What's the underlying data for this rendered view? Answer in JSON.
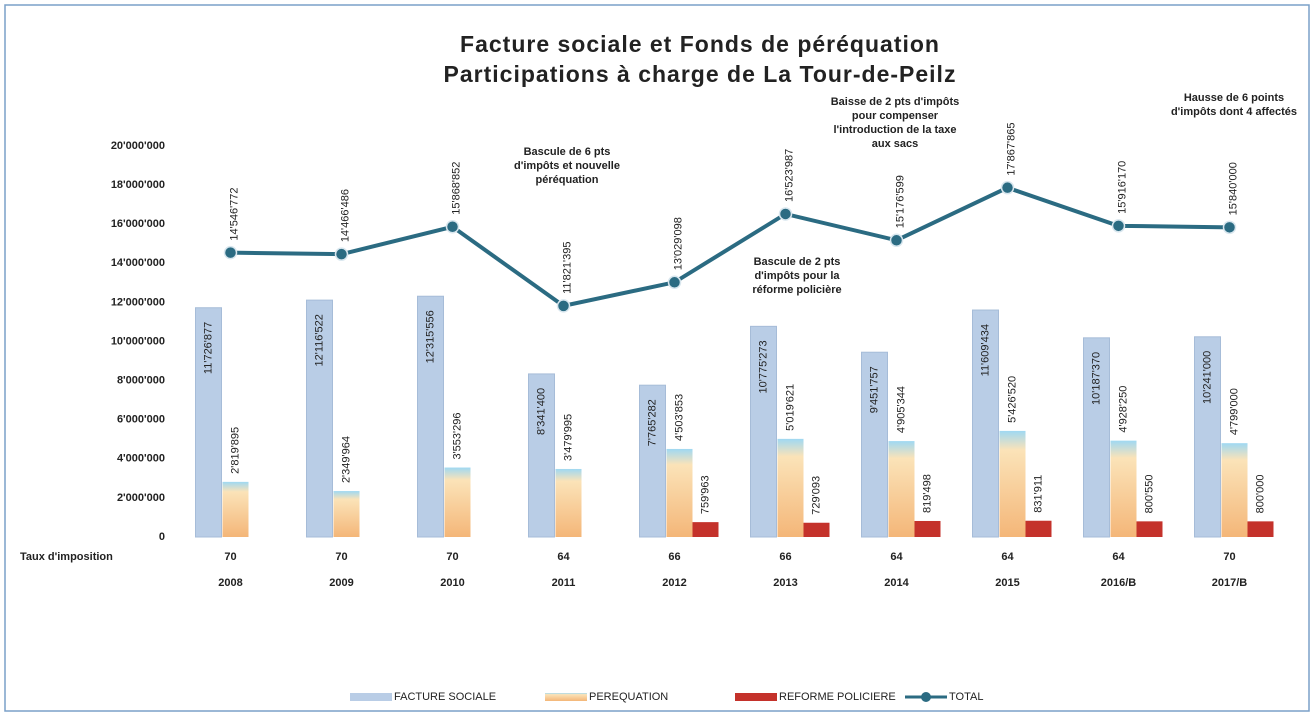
{
  "chart_data": {
    "type": "bar_line",
    "title": [
      "Facture sociale et Fonds de péréquation",
      "Participations à charge de La Tour-de-Peilz"
    ],
    "categories": [
      "2008",
      "2009",
      "2010",
      "2011",
      "2012",
      "2013",
      "2014",
      "2015",
      "2016/B",
      "2017/B"
    ],
    "tax_rate": {
      "label": "Taux d'imposition",
      "values": [
        70,
        70,
        70,
        64,
        66,
        66,
        64,
        64,
        64,
        70
      ]
    },
    "ylim": [
      0,
      20000000
    ],
    "yticks": [
      0,
      {
        "value": 2000000,
        "label": "2'000'000"
      },
      {
        "value": 4000000,
        "label": "4'000'000"
      },
      {
        "value": 6000000,
        "label": "6'000'000"
      },
      {
        "value": 8000000,
        "label": "8'000'000"
      },
      {
        "value": 10000000,
        "label": "10'000'000"
      },
      {
        "value": 12000000,
        "label": "12'000'000"
      },
      {
        "value": 14000000,
        "label": "14'000'000"
      },
      {
        "value": 16000000,
        "label": "16'000'000"
      },
      {
        "value": 18000000,
        "label": "18'000'000"
      },
      {
        "value": 20000000,
        "label": "20'000'000"
      }
    ],
    "series": [
      {
        "name": "FACTURE SOCIALE",
        "type": "bar",
        "color": "#b9cde6",
        "values": [
          11726877,
          12116522,
          12315556,
          8341400,
          7765282,
          10775273,
          9451757,
          11609434,
          10187370,
          10241000
        ],
        "value_labels": [
          "11'726'877",
          "12'116'522",
          "12'315'556",
          "8'341'400",
          "7'765'282",
          "10'775'273",
          "9'451'757",
          "11'609'434",
          "10'187'370",
          "10'241'000"
        ]
      },
      {
        "name": "PEREQUATION",
        "type": "bar",
        "color": "#f4b678",
        "values": [
          2819895,
          2349964,
          3553296,
          3479995,
          4503853,
          5019621,
          4905344,
          5426520,
          4928250,
          4799000
        ],
        "value_labels": [
          "2'819'895",
          "2'349'964",
          "3'553'296",
          "3'479'995",
          "4'503'853",
          "5'019'621",
          "4'905'344",
          "5'426'520",
          "4'928'250",
          "4'799'000"
        ]
      },
      {
        "name": "REFORME POLICIERE",
        "type": "bar",
        "color": "#c4322b",
        "values": [
          null,
          null,
          null,
          null,
          759963,
          729093,
          819498,
          831911,
          800550,
          800000
        ],
        "value_labels": [
          null,
          null,
          null,
          null,
          "759'963",
          "729'093",
          "819'498",
          "831'911",
          "800'550",
          "800'000"
        ]
      },
      {
        "name": "TOTAL",
        "type": "line",
        "color": "#2b6b82",
        "values": [
          14546772,
          14466486,
          15868852,
          11821395,
          13029098,
          16523987,
          15176599,
          17867865,
          15916170,
          15840000
        ],
        "value_labels": [
          "14'546'772",
          "14'466'486",
          "15'868'852",
          "11'821'395",
          "13'029'098",
          "16'523'987",
          "15'176'599",
          "17'867'865",
          "15'916'170",
          "15'840'000"
        ]
      }
    ],
    "annotations": [
      [
        "Bascule de 6 pts",
        "d'impôts et nouvelle",
        "péréquation"
      ],
      [
        "Bascule de 2 pts",
        "d'impôts pour la",
        "réforme policière"
      ],
      [
        "Baisse de 2 pts d'impôts",
        "pour compenser",
        "l'introduction de la taxe",
        "aux sacs"
      ],
      [
        "Hausse de 6 points",
        "d'impôts dont 4 affectés"
      ]
    ]
  }
}
